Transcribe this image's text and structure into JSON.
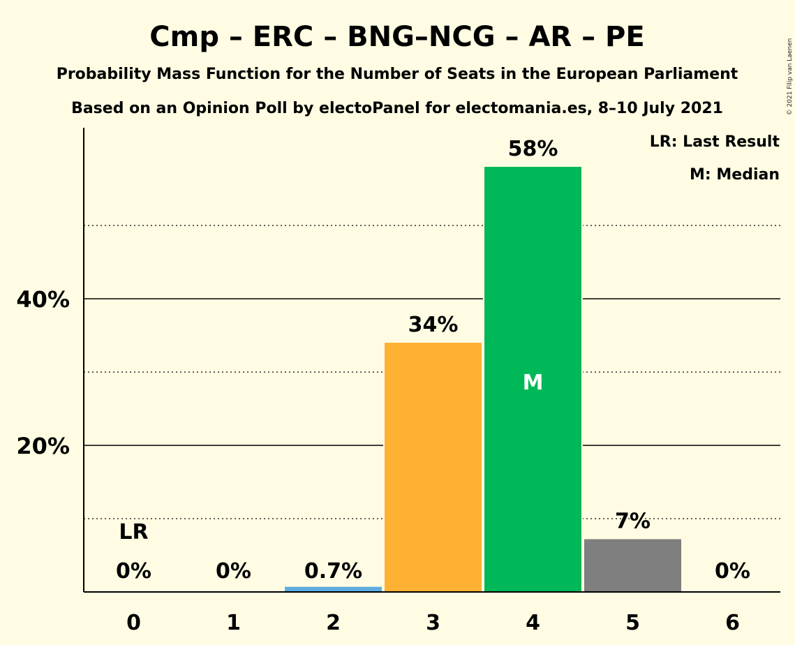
{
  "chart_data": {
    "type": "bar",
    "title": "Cmp – ERC – BNG–NCG – AR – PE",
    "subtitle1": "Probability Mass Function for the Number of Seats in the European Parliament",
    "subtitle2": "Based on an Opinion Poll by electoPanel for electomania.es, 8–10 July 2021",
    "copyright": "© 2021 Filip van Laenen",
    "legend": [
      "LR: Last Result",
      "M: Median"
    ],
    "legend_position": "top-right",
    "categories": [
      "0",
      "1",
      "2",
      "3",
      "4",
      "5",
      "6"
    ],
    "values": [
      0,
      0,
      0.7,
      34,
      58,
      7.2,
      0
    ],
    "value_labels": [
      "0%",
      "0%",
      "0.7%",
      "34%",
      "58%",
      "7%",
      "0%"
    ],
    "colors": [
      "#5DADE2",
      "#5DADE2",
      "#5DADE2",
      "#FFB133",
      "#00B857",
      "#7F7F7F",
      "#7F7F7F"
    ],
    "last_result_index": 0,
    "last_result_label": "LR",
    "median_index": 4,
    "median_label": "M",
    "yticks": [
      {
        "value": 20,
        "label": "20%"
      },
      {
        "value": 40,
        "label": "40%"
      }
    ],
    "minor_gridlines": [
      10,
      30,
      50
    ],
    "ylim": [
      0,
      63
    ],
    "xlabel": "",
    "ylabel": ""
  }
}
